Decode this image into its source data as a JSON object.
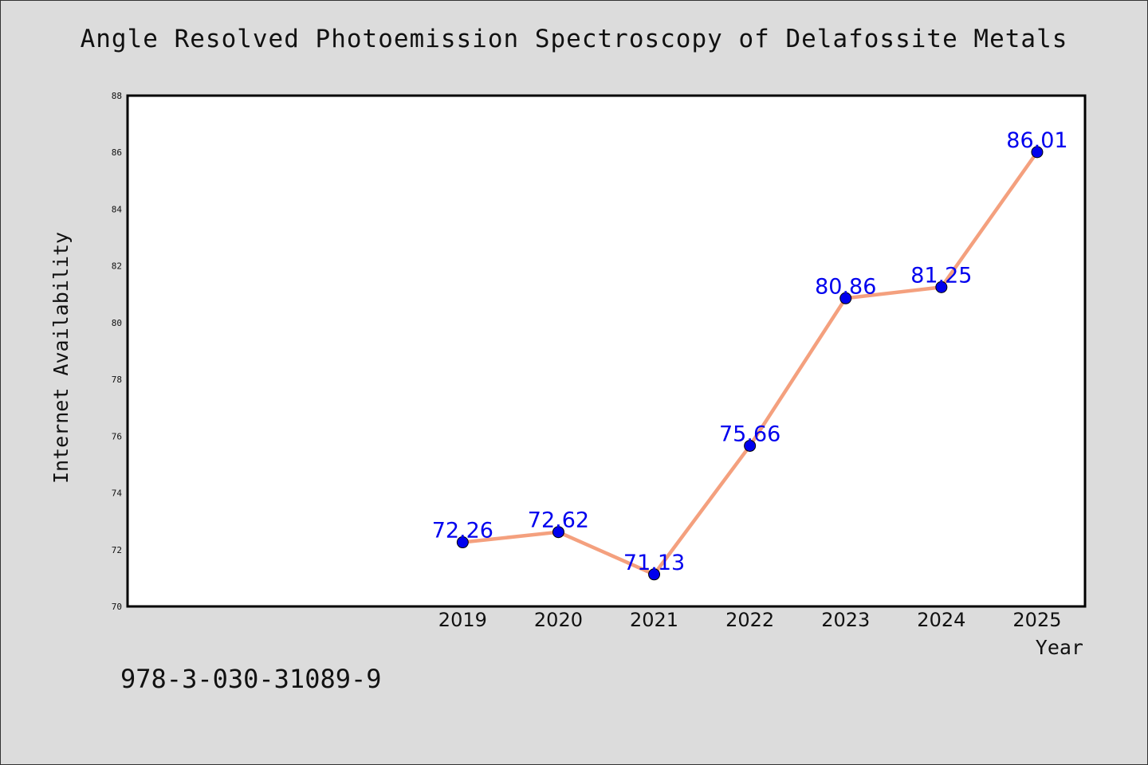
{
  "title": "Angle Resolved Photoemission Spectroscopy of Delafossite Metals",
  "footer_text": "978-3-030-31089-9",
  "chart_data": {
    "type": "line",
    "categories": [
      "2019",
      "2020",
      "2021",
      "2022",
      "2023",
      "2024",
      "2025"
    ],
    "series": [
      {
        "values": [
          72.26,
          72.62,
          71.13,
          75.66,
          80.86,
          81.25,
          86.01
        ],
        "data_labels": [
          "72.26",
          "72.62",
          "71.13",
          "75.66",
          "80.86",
          "81.25",
          "86.01"
        ],
        "line_color": "#f4a07e",
        "marker_color": "#0000ee"
      }
    ],
    "xlabel": "Year",
    "ylabel": "Internet Availability",
    "ylim": [
      70,
      88
    ],
    "yticks": [
      "70",
      "72",
      "74",
      "76",
      "78",
      "80",
      "82",
      "84",
      "86",
      "88"
    ],
    "grid": false,
    "legend": "none"
  }
}
